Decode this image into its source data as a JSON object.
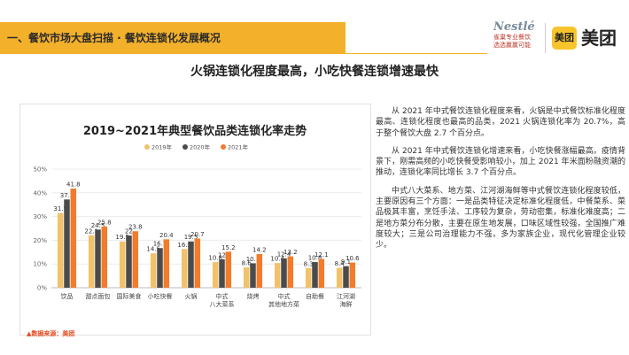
{
  "header": {
    "title": "一、餐饮市场大盘扫描 · 餐饮连锁化发展概况"
  },
  "logos": {
    "nestle_name": "Nestlé",
    "nestle_sub": "雀巢专业餐饮",
    "nestle_tagline": "选选赢赢可能",
    "badge": "美团",
    "brand": "美团"
  },
  "main_title": "火锅连锁化程度最高，小吃快餐连锁增速最快",
  "source_note": "▲数据来源：美团",
  "paragraphs": [
    "从 2021 年中式餐饮连锁化程度来看，火锅是中式餐饮标准化程度最高、连锁化程度也最高的品类，2021 火锅连锁化率为 20.7%，高于整个餐饮大盘 2.7 个百分点。",
    "从 2021 年中式餐饮连锁化增速来看，小吃快餐涨幅最高。疫情背景下，刚需高频的小吃快餐受影响较小，加上 2021 年米面粉融资潮的推动，连锁化率同比增长 3.7 个百分点。",
    "中式八大菜系、地方菜、江河湖海鲜等中式餐饮连锁化程度较低，主要原因有三个方面：一是品类特征决定标准化程度低，中餐菜系、菜品极其丰富，烹饪手法、工序较为复杂，劳动密集，标准化难度高；二是地方菜分布分散，主要在原生地发展，口味区域性较强，全国推广难度较大；三是公司治理能力不强，多为家族企业，现代化管理企业较少。"
  ],
  "chart_data": {
    "type": "bar",
    "title": "2019~2021年典型餐饮品类连锁化率走势",
    "categories": [
      "饮品",
      "甜点面包",
      "国际美食",
      "小吃快餐",
      "火锅",
      "中式八大菜系",
      "烧烤",
      "中式其他地方菜",
      "自助餐",
      "江河湖海鲜"
    ],
    "series": [
      {
        "name": "2019年",
        "color": "#f2c26a",
        "values": [
          31.5,
          22.1,
          19.5,
          14.5,
          16.3,
          10.8,
          8.6,
          10.4,
          8.3,
          8.4
        ]
      },
      {
        "name": "2020年",
        "color": "#4b4b4b",
        "values": [
          37.2,
          24.5,
          22.0,
          16.7,
          19.5,
          12.0,
          10.3,
          12.4,
          10.8,
          9.1
        ]
      },
      {
        "name": "2021年",
        "color": "#f07c2c",
        "values": [
          41.8,
          25.8,
          23.8,
          20.4,
          20.7,
          15.2,
          14.2,
          13.2,
          12.1,
          10.6
        ]
      }
    ],
    "y_ticks": [
      "0%",
      "10%",
      "20%",
      "30%",
      "40%",
      "50%"
    ],
    "ylim": [
      0,
      50
    ],
    "grid": true,
    "legend_position": "top-center"
  }
}
